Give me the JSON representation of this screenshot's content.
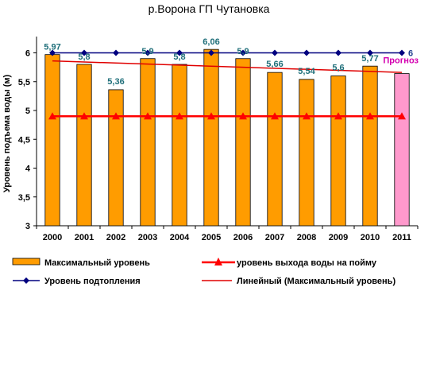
{
  "chart_data": {
    "type": "bar",
    "title": "р.Ворона ГП Чутановка",
    "ylabel": "Уровень подъема воды (м)",
    "categories": [
      "2000",
      "2001",
      "2002",
      "2003",
      "2004",
      "2005",
      "2006",
      "2007",
      "2008",
      "2009",
      "2010",
      "2011"
    ],
    "ylim": [
      3,
      6.2
    ],
    "yticks": [
      "3",
      "3,5",
      "4",
      "4,5",
      "5",
      "5,5",
      "6"
    ],
    "ytick_values": [
      3,
      3.5,
      4,
      4.5,
      5,
      5.5,
      6
    ],
    "series": [
      {
        "name": "Максимальный уровень",
        "kind": "bar",
        "values": [
          5.97,
          5.8,
          5.36,
          5.9,
          5.8,
          6.06,
          5.9,
          5.66,
          5.54,
          5.6,
          5.77,
          5.64
        ],
        "labels": [
          "5,97",
          "5,8",
          "5,36",
          "5,9",
          "5,8",
          "6,06",
          "5,9",
          "5,66",
          "5,54",
          "5,6",
          "5,77",
          ""
        ],
        "color": "#ff9c00",
        "forecast_color": "#ff99cc"
      },
      {
        "name": "уровень выхода  воды на пойму",
        "kind": "line",
        "values": [
          4.9,
          4.9,
          4.9,
          4.9,
          4.9,
          4.9,
          4.9,
          4.9,
          4.9,
          4.9,
          4.9,
          4.9
        ],
        "color": "#ff0000",
        "marker": "triangle"
      },
      {
        "name": "Уровень подтопления",
        "kind": "line",
        "values": [
          6,
          6,
          6,
          6,
          6,
          6,
          6,
          6,
          6,
          6,
          6,
          6
        ],
        "color": "#00007f",
        "marker": "diamond"
      },
      {
        "name": "Линейный (Максимальный уровень)",
        "kind": "trendline",
        "start": 5.86,
        "end": 5.66,
        "color": "#e00000"
      }
    ],
    "last_point_label": "6",
    "forecast_note": "Прогноз",
    "legend_placement": "bottom",
    "grid": false
  }
}
